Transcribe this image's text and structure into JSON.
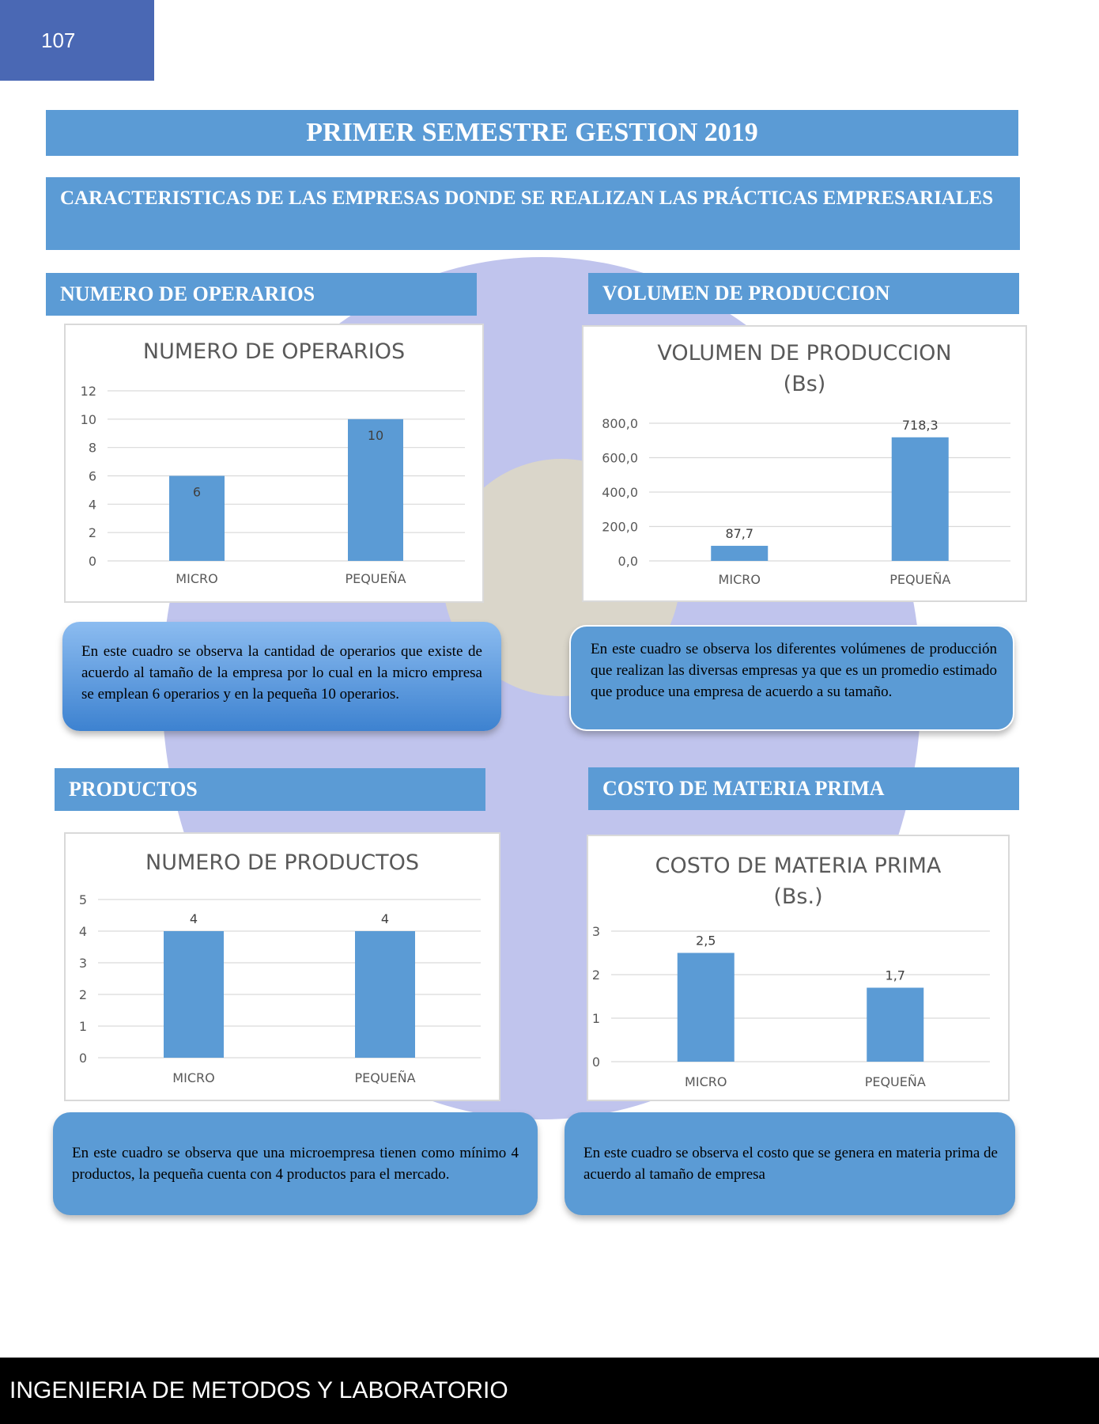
{
  "page_number": "107",
  "title": "PRIMER SEMESTRE GESTION 2019",
  "subtitle": "CARACTERISTICAS DE LAS EMPRESAS DONDE SE REALIZAN LAS PRÁCTICAS EMPRESARIALES",
  "sections": [
    {
      "heading": "NUMERO DE OPERARIOS",
      "note": "En este cuadro se observa la cantidad de operarios que existe de acuerdo al tamaño de la empresa por lo cual en la micro empresa se emplean 6 operarios y en la pequeña 10 operarios."
    },
    {
      "heading": "VOLUMEN DE PRODUCCION",
      "note": "En este cuadro se observa los diferentes volúmenes de producción que realizan las diversas empresas ya que es un promedio estimado que produce una empresa de acuerdo a su tamaño."
    },
    {
      "heading": "PRODUCTOS",
      "note": "En este cuadro se observa que una microempresa tienen como mínimo 4 productos, la pequeña cuenta con 4 productos para el mercado."
    },
    {
      "heading": "COSTO DE MATERIA PRIMA",
      "note": "En este cuadro se observa el costo que se genera en materia prima de acuerdo al tamaño de empresa"
    }
  ],
  "chart_data": [
    {
      "type": "bar",
      "title": "NUMERO DE OPERARIOS",
      "title_lines": [
        "NUMERO DE OPERARIOS"
      ],
      "categories": [
        "MICRO",
        "PEQUEÑA"
      ],
      "values": [
        6,
        10
      ],
      "value_labels": [
        "6",
        "10"
      ],
      "label_position": "inside",
      "ylim": [
        0,
        12
      ],
      "yticks": [
        "0",
        "2",
        "4",
        "6",
        "8",
        "10",
        "12"
      ],
      "ytick_values": [
        0,
        2,
        4,
        6,
        8,
        10,
        12
      ],
      "grid": true,
      "color": "#5b9bd5"
    },
    {
      "type": "bar",
      "title": "VOLUMEN DE PRODUCCION (Bs)",
      "title_lines": [
        "VOLUMEN DE PRODUCCION",
        "(Bs)"
      ],
      "categories": [
        "MICRO",
        "PEQUEÑA"
      ],
      "values": [
        87.7,
        718.3
      ],
      "value_labels": [
        "87,7",
        "718,3"
      ],
      "label_position": "above",
      "ylim": [
        0,
        800
      ],
      "yticks": [
        "0,0",
        "200,0",
        "400,0",
        "600,0",
        "800,0"
      ],
      "ytick_values": [
        0,
        200,
        400,
        600,
        800
      ],
      "grid": true,
      "color": "#5b9bd5"
    },
    {
      "type": "bar",
      "title": "NUMERO DE PRODUCTOS",
      "title_lines": [
        "NUMERO DE PRODUCTOS"
      ],
      "categories": [
        "MICRO",
        "PEQUEÑA"
      ],
      "values": [
        4,
        4
      ],
      "value_labels": [
        "4",
        "4"
      ],
      "label_position": "above",
      "ylim": [
        0,
        5
      ],
      "yticks": [
        "0",
        "1",
        "2",
        "3",
        "4",
        "5"
      ],
      "ytick_values": [
        0,
        1,
        2,
        3,
        4,
        5
      ],
      "grid": true,
      "color": "#5b9bd5"
    },
    {
      "type": "bar",
      "title": "COSTO DE MATERIA PRIMA (Bs.)",
      "title_lines": [
        "COSTO DE MATERIA PRIMA",
        "(Bs.)"
      ],
      "categories": [
        "MICRO",
        "PEQUEÑA"
      ],
      "values": [
        2.5,
        1.7
      ],
      "value_labels": [
        "2,5",
        "1,7"
      ],
      "label_position": "above",
      "ylim": [
        0,
        3
      ],
      "yticks": [
        "0",
        "1",
        "2",
        "3"
      ],
      "ytick_values": [
        0,
        1,
        2,
        3
      ],
      "grid": true,
      "color": "#5b9bd5"
    }
  ],
  "footer": "INGENIERIA DE METODOS Y LABORATORIO"
}
